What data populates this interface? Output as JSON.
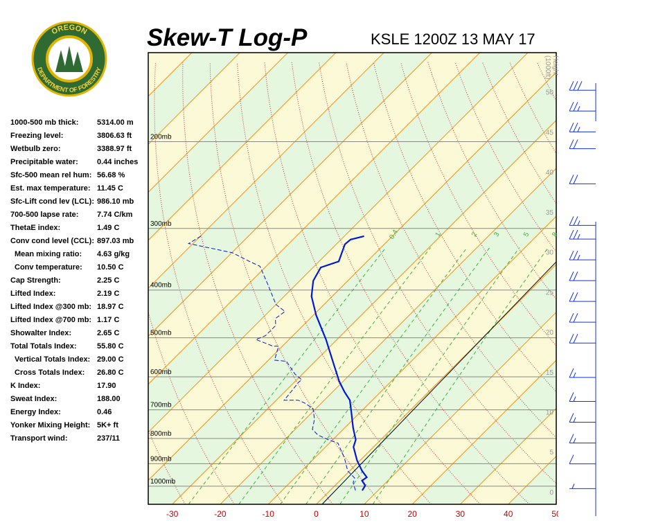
{
  "logo": {
    "top": "OREGON",
    "bottom": "DEPARTMENT OF FORESTRY"
  },
  "stats": [
    {
      "label": "1000-500 mb thick:",
      "value": "5314.00 m"
    },
    {
      "label": "Freezing level:",
      "value": "3806.63 ft"
    },
    {
      "label": "Wetbulb zero:",
      "value": "3388.97 ft"
    },
    {
      "label": "Precipitable water:",
      "value": "0.44 inches"
    },
    {
      "label": "Sfc-500 mean rel hum:",
      "value": "56.68 %"
    },
    {
      "label": "Est. max temperature:",
      "value": "11.45 C"
    },
    {
      "label": "Sfc-Lift cond lev (LCL):",
      "value": "986.10 mb"
    },
    {
      "label": "700-500 lapse rate:",
      "value": "7.74 C/km"
    },
    {
      "label": "ThetaE index:",
      "value": "1.49 C"
    },
    {
      "label": "Conv cond level (CCL):",
      "value": "897.03 mb"
    },
    {
      "label": "Mean mixing ratio:",
      "value": "4.63 g/kg"
    },
    {
      "label": "Conv temperature:",
      "value": "10.50 C"
    },
    {
      "label": "Cap Strength:",
      "value": "2.25 C"
    },
    {
      "label": "Lifted Index:",
      "value": "2.19 C"
    },
    {
      "label": "Lifted Index @300 mb:",
      "value": "18.97 C"
    },
    {
      "label": "Lifted Index @700 mb:",
      "value": "1.17 C"
    },
    {
      "label": "Showalter Index:",
      "value": "2.65 C"
    },
    {
      "label": "Total Totals Index:",
      "value": "55.80 C"
    },
    {
      "label": "Vertical Totals Index:",
      "value": "29.00 C"
    },
    {
      "label": "Cross Totals Index:",
      "value": "26.80 C"
    },
    {
      "label": "K Index:",
      "value": "17.90"
    },
    {
      "label": "Sweat Index:",
      "value": "188.00"
    },
    {
      "label": "Energy Index:",
      "value": "0.46"
    },
    {
      "label": "Yonker Mixing Height:",
      "value": "5K+ ft"
    },
    {
      "label": "Transport wind:",
      "value": "237/11"
    }
  ],
  "chart_data": {
    "type": "skewt",
    "title": "Skew-T Log-P",
    "subtitle": "KSLE 1200Z 13 MAY 17",
    "height_label": [
      "Height",
      "(1000ft)"
    ],
    "xlim": [
      -35,
      50
    ],
    "xticks": [
      -30,
      -20,
      -10,
      0,
      10,
      20,
      30,
      40,
      50
    ],
    "ylim": [
      1088,
      132
    ],
    "log_y": true,
    "yticks": [
      {
        "value": 200,
        "label": "200mb"
      },
      {
        "value": 300,
        "label": "300mb"
      },
      {
        "value": 400,
        "label": "400mb"
      },
      {
        "value": 500,
        "label": "500mb"
      },
      {
        "value": 600,
        "label": "600mb"
      },
      {
        "value": 700,
        "label": "700mb"
      },
      {
        "value": 800,
        "label": "800mb"
      },
      {
        "value": 900,
        "label": "900mb"
      },
      {
        "value": 1000,
        "label": "1000mb"
      }
    ],
    "height_lim": [
      -1.56,
      54.9
    ],
    "height_ticks": [
      0,
      5,
      10,
      15,
      20,
      25,
      30,
      35,
      40,
      45,
      50
    ],
    "mixing_ratio_lines": [
      0.4,
      1,
      2,
      3,
      5,
      8
    ],
    "temperature": {
      "color": "#0018d8",
      "p": [
        1020,
        997,
        974,
        959,
        931,
        887,
        832,
        805,
        762,
        696,
        669,
        644,
        612,
        564,
        504,
        450,
        412,
        383,
        360,
        350,
        323,
        316,
        311
      ],
      "values": [
        6.7,
        6.3,
        4.6,
        4.9,
        2.6,
        -0.6,
        -4.2,
        -5.2,
        -8.2,
        -12.7,
        -14.7,
        -17.5,
        -20.9,
        -25.7,
        -32.3,
        -39.4,
        -44.3,
        -47.2,
        -48.4,
        -45.9,
        -48.2,
        -48.0,
        -45.9
      ]
    },
    "dewpoint": {
      "color": "#0018d8",
      "p": [
        1020,
        984,
        962,
        931,
        879,
        818,
        805,
        787,
        767,
        731,
        696,
        678,
        669,
        669,
        642,
        615,
        608,
        592,
        558,
        555,
        520,
        520,
        504,
        495,
        472,
        457,
        442,
        428,
        412,
        389,
        358,
        350,
        336,
        322,
        310
      ],
      "values": [
        5.3,
        3.2,
        2.5,
        -0.4,
        -3.6,
        -8.2,
        -10.9,
        -14.1,
        -16.4,
        -18.1,
        -20.6,
        -23.5,
        -25.5,
        -28.4,
        -28.7,
        -29.1,
        -29.0,
        -31.6,
        -36.0,
        -38.7,
        -40.8,
        -41.9,
        -46.9,
        -45.7,
        -45.7,
        -47.2,
        -46.7,
        -50.0,
        -52.4,
        -56.0,
        -61.3,
        -64.5,
        -69.9,
        -80.9,
        -79.8
      ]
    },
    "winds": {
      "color": "#1030e0",
      "height": [
        50.2,
        47.6,
        45.0,
        42.9,
        38.5,
        33.3,
        31.6,
        29.0,
        26.4,
        23.8,
        21.2,
        18.6,
        14.3,
        11.3,
        8.7,
        6.1,
        3.5,
        0.4
      ],
      "speed": [
        30,
        25,
        25,
        20,
        20,
        25,
        25,
        25,
        20,
        20,
        20,
        20,
        15,
        15,
        15,
        15,
        10,
        5
      ]
    }
  }
}
